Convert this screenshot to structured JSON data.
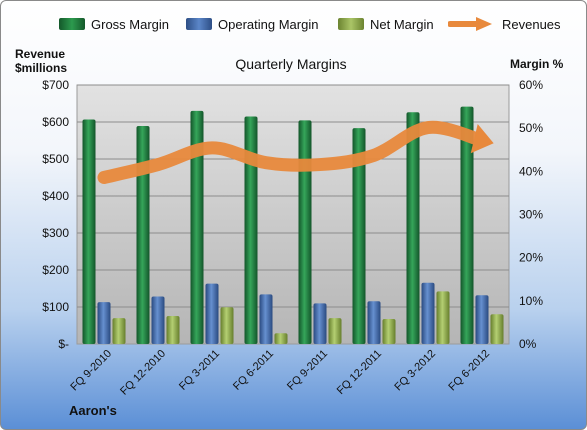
{
  "legend": {
    "gross_margin": "Gross Margin",
    "operating_margin": "Operating Margin",
    "net_margin": "Net Margin",
    "revenues": "Revenues"
  },
  "labels": {
    "y_left_line1": "Revenue",
    "y_left_line2": "$millions",
    "y_right": "Margin %",
    "title": "Quarterly Margins",
    "company": "Aaron's"
  },
  "colors": {
    "gross_margin": "#1e7a3c",
    "operating_margin": "#3f68a8",
    "net_margin": "#8ea74a",
    "revenues": "#e8893c",
    "plot_bg": "#c9c9c9"
  },
  "chart_data": {
    "type": "bar",
    "title": "Quarterly Margins",
    "categories": [
      "FQ 9-2010",
      "FQ 12-2010",
      "FQ 3-2011",
      "FQ 6-2011",
      "FQ 9-2011",
      "FQ 12-2011",
      "FQ 3-2012",
      "FQ 6-2012"
    ],
    "series": [
      {
        "name": "Gross Margin",
        "axis": "right",
        "unit": "%",
        "values": [
          52.0,
          50.5,
          54.0,
          52.7,
          51.8,
          50.0,
          53.7,
          55.0
        ]
      },
      {
        "name": "Operating Margin",
        "axis": "right",
        "unit": "%",
        "values": [
          9.7,
          11.0,
          14.0,
          11.5,
          9.4,
          9.9,
          14.2,
          11.3
        ]
      },
      {
        "name": "Net Margin",
        "axis": "right",
        "unit": "%",
        "values": [
          6.0,
          6.5,
          8.5,
          2.5,
          6.0,
          5.8,
          12.2,
          6.9
        ]
      },
      {
        "name": "Revenues",
        "type": "line",
        "axis": "left",
        "unit": "$ millions",
        "values": [
          450,
          485,
          530,
          490,
          485,
          510,
          585,
          550
        ]
      }
    ],
    "ylabel_left": "Revenue $millions",
    "ylabel_right": "Margin %",
    "ylim_left": [
      0,
      700
    ],
    "ylim_right": [
      0,
      60
    ],
    "yticks_left": [
      "$-",
      "$100",
      "$200",
      "$300",
      "$400",
      "$500",
      "$600",
      "$700"
    ],
    "yticks_right": [
      "0%",
      "10%",
      "20%",
      "30%",
      "40%",
      "50%",
      "60%"
    ],
    "grid": true,
    "legend_position": "top"
  }
}
